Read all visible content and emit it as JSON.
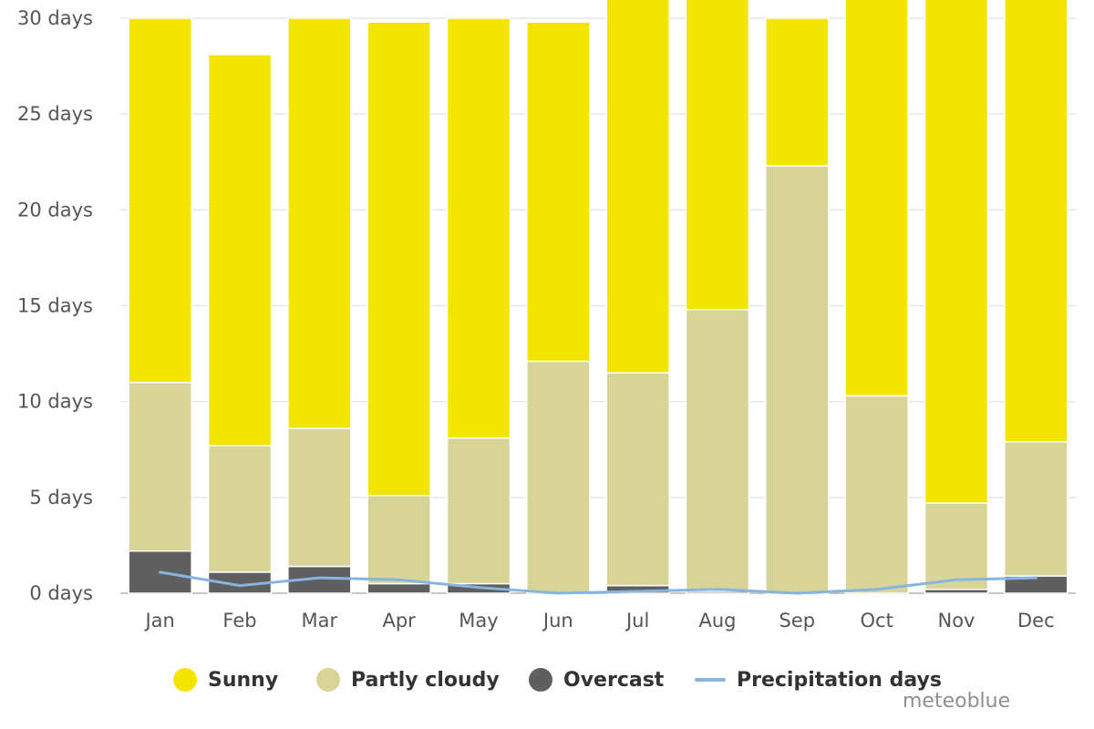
{
  "chart_data": {
    "type": "bar",
    "stacked": true,
    "categories": [
      "Jan",
      "Feb",
      "Mar",
      "Apr",
      "May",
      "Jun",
      "Jul",
      "Aug",
      "Sep",
      "Oct",
      "Nov",
      "Dec"
    ],
    "series": [
      {
        "name": "Overcast",
        "color": "#5f5f5f",
        "values": [
          2.2,
          1.1,
          1.4,
          0.5,
          0.5,
          0.0,
          0.4,
          0.1,
          0.0,
          0.0,
          0.2,
          0.9
        ]
      },
      {
        "name": "Partly cloudy",
        "color": "#d8d497",
        "values": [
          8.8,
          6.6,
          7.2,
          4.6,
          7.6,
          12.1,
          11.1,
          14.7,
          22.3,
          10.3,
          4.5,
          7.0
        ]
      },
      {
        "name": "Sunny",
        "color": "#f2e600",
        "values": [
          19.0,
          20.4,
          21.4,
          24.7,
          21.9,
          17.7,
          19.5,
          16.2,
          7.7,
          20.7,
          26.3,
          23.1
        ]
      }
    ],
    "line_series": {
      "name": "Precipitation days",
      "color": "#85b5e0",
      "values": [
        1.1,
        0.4,
        0.8,
        0.7,
        0.3,
        0.0,
        0.1,
        0.2,
        0.0,
        0.2,
        0.7,
        0.8
      ]
    },
    "ylim": [
      0,
      30
    ],
    "yticks": [
      0,
      5,
      10,
      15,
      20,
      25,
      30
    ],
    "ytick_labels": [
      "0 days",
      "5 days",
      "10 days",
      "15 days",
      "20 days",
      "25 days",
      "30 days"
    ],
    "grid": true,
    "legend_position": "bottom"
  },
  "legend": {
    "sunny": "Sunny",
    "partly_cloudy": "Partly cloudy",
    "overcast": "Overcast",
    "precipitation": "Precipitation days"
  },
  "credit": "meteoblue"
}
